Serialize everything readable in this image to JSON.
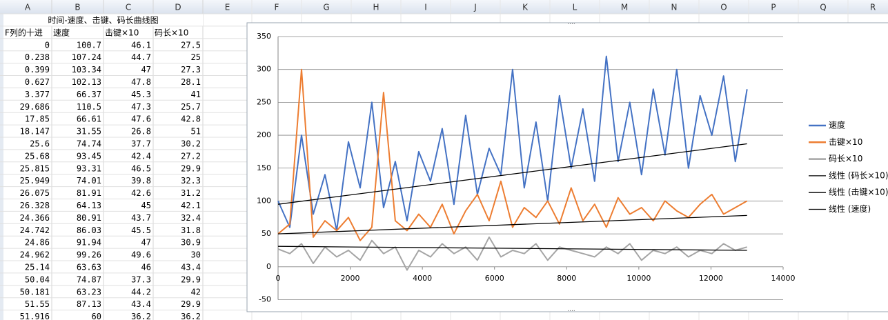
{
  "columns": [
    "A",
    "B",
    "C",
    "D",
    "E",
    "F",
    "G",
    "H",
    "I",
    "J",
    "K",
    "L",
    "M",
    "N",
    "O",
    "P",
    "Q",
    "R"
  ],
  "sheet": {
    "title": "时间-速度、击键、码长曲线图",
    "headers": [
      "F列的十进",
      "速度",
      "击键×10",
      "码长×10"
    ],
    "rows": [
      [
        0,
        100.7,
        46.1,
        27.5
      ],
      [
        0.238,
        107.24,
        44.7,
        25
      ],
      [
        0.399,
        103.34,
        47,
        27.3
      ],
      [
        0.627,
        102.13,
        47.8,
        28.1
      ],
      [
        3.377,
        66.37,
        45.3,
        41
      ],
      [
        29.686,
        110.5,
        47.3,
        25.7
      ],
      [
        17.85,
        66.61,
        47.6,
        42.8
      ],
      [
        18.147,
        31.55,
        26.8,
        51
      ],
      [
        25.6,
        74.74,
        37.7,
        30.2
      ],
      [
        25.68,
        93.45,
        42.4,
        27.2
      ],
      [
        25.815,
        93.31,
        46.5,
        29.9
      ],
      [
        25.949,
        74.01,
        39.8,
        32.3
      ],
      [
        26.075,
        81.91,
        42.6,
        31.2
      ],
      [
        26.328,
        64.13,
        45,
        42.1
      ],
      [
        24.366,
        80.91,
        43.7,
        32.4
      ],
      [
        24.742,
        86.03,
        45.5,
        31.8
      ],
      [
        24.86,
        91.94,
        47,
        30.9
      ],
      [
        24.962,
        99.26,
        49.6,
        30
      ],
      [
        25.14,
        63.63,
        46,
        43.4
      ],
      [
        50.04,
        74.87,
        37.3,
        29.9
      ],
      [
        50.181,
        63.23,
        44.2,
        42
      ],
      [
        51.55,
        87.13,
        43.4,
        29.9
      ],
      [
        51.916,
        60,
        36.2,
        36.2
      ]
    ]
  },
  "chart_data": {
    "type": "line",
    "xlim": [
      0,
      14000
    ],
    "xticks": [
      0,
      2000,
      4000,
      6000,
      8000,
      10000,
      12000,
      14000
    ],
    "ylim": [
      -50,
      350
    ],
    "yticks": [
      -50,
      0,
      50,
      100,
      150,
      200,
      250,
      300,
      350
    ],
    "grid": true,
    "legend": "right",
    "series": [
      {
        "name": "速度",
        "color": "#4472c4",
        "x": [
          0,
          325,
          650,
          975,
          1300,
          1625,
          1950,
          2275,
          2600,
          2925,
          3250,
          3575,
          3900,
          4225,
          4550,
          4875,
          5200,
          5525,
          5850,
          6175,
          6500,
          6825,
          7150,
          7475,
          7800,
          8125,
          8450,
          8775,
          9100,
          9425,
          9750,
          10075,
          10400,
          10725,
          11050,
          11375,
          11700,
          12025,
          12350,
          12675,
          13000
        ],
        "values": [
          100,
          60,
          200,
          80,
          140,
          55,
          190,
          120,
          250,
          90,
          160,
          70,
          175,
          130,
          210,
          95,
          230,
          110,
          180,
          140,
          300,
          120,
          220,
          100,
          260,
          150,
          240,
          130,
          320,
          160,
          250,
          140,
          270,
          170,
          300,
          150,
          260,
          200,
          290,
          160,
          270
        ]
      },
      {
        "name": "击键×10",
        "color": "#ed7d31",
        "x": [
          0,
          325,
          650,
          975,
          1300,
          1625,
          1950,
          2275,
          2600,
          2925,
          3250,
          3575,
          3900,
          4225,
          4550,
          4875,
          5200,
          5525,
          5850,
          6175,
          6500,
          6825,
          7150,
          7475,
          7800,
          8125,
          8450,
          8775,
          9100,
          9425,
          9750,
          10075,
          10400,
          10725,
          11050,
          11375,
          11700,
          12025,
          12350,
          12675,
          13000
        ],
        "values": [
          50,
          65,
          300,
          45,
          70,
          55,
          75,
          40,
          60,
          265,
          70,
          55,
          80,
          60,
          95,
          50,
          85,
          110,
          70,
          130,
          60,
          90,
          75,
          100,
          65,
          120,
          70,
          95,
          60,
          105,
          80,
          90,
          70,
          100,
          85,
          75,
          95,
          110,
          80,
          90,
          100
        ]
      },
      {
        "name": "码长×10",
        "color": "#a5a5a5",
        "x": [
          0,
          325,
          650,
          975,
          1300,
          1625,
          1950,
          2275,
          2600,
          2925,
          3250,
          3575,
          3900,
          4225,
          4550,
          4875,
          5200,
          5525,
          5850,
          6175,
          6500,
          6825,
          7150,
          7475,
          7800,
          8125,
          8450,
          8775,
          9100,
          9425,
          9750,
          10075,
          10400,
          10725,
          11050,
          11375,
          11700,
          12025,
          12350,
          12675,
          13000
        ],
        "values": [
          27,
          20,
          35,
          5,
          30,
          15,
          25,
          10,
          40,
          20,
          30,
          -5,
          25,
          15,
          35,
          20,
          30,
          10,
          45,
          15,
          25,
          20,
          35,
          10,
          30,
          25,
          20,
          15,
          30,
          20,
          35,
          10,
          25,
          20,
          30,
          15,
          25,
          20,
          35,
          25,
          30
        ]
      },
      {
        "name": "线性 (码长×10)",
        "color": "#000000",
        "x": [
          0,
          13000
        ],
        "values": [
          31,
          25
        ]
      },
      {
        "name": "线性 (击键×10)",
        "color": "#000000",
        "x": [
          0,
          13000
        ],
        "values": [
          50,
          78
        ]
      },
      {
        "name": "线性 (速度)",
        "color": "#000000",
        "x": [
          0,
          13000
        ],
        "values": [
          95,
          187
        ]
      }
    ]
  }
}
